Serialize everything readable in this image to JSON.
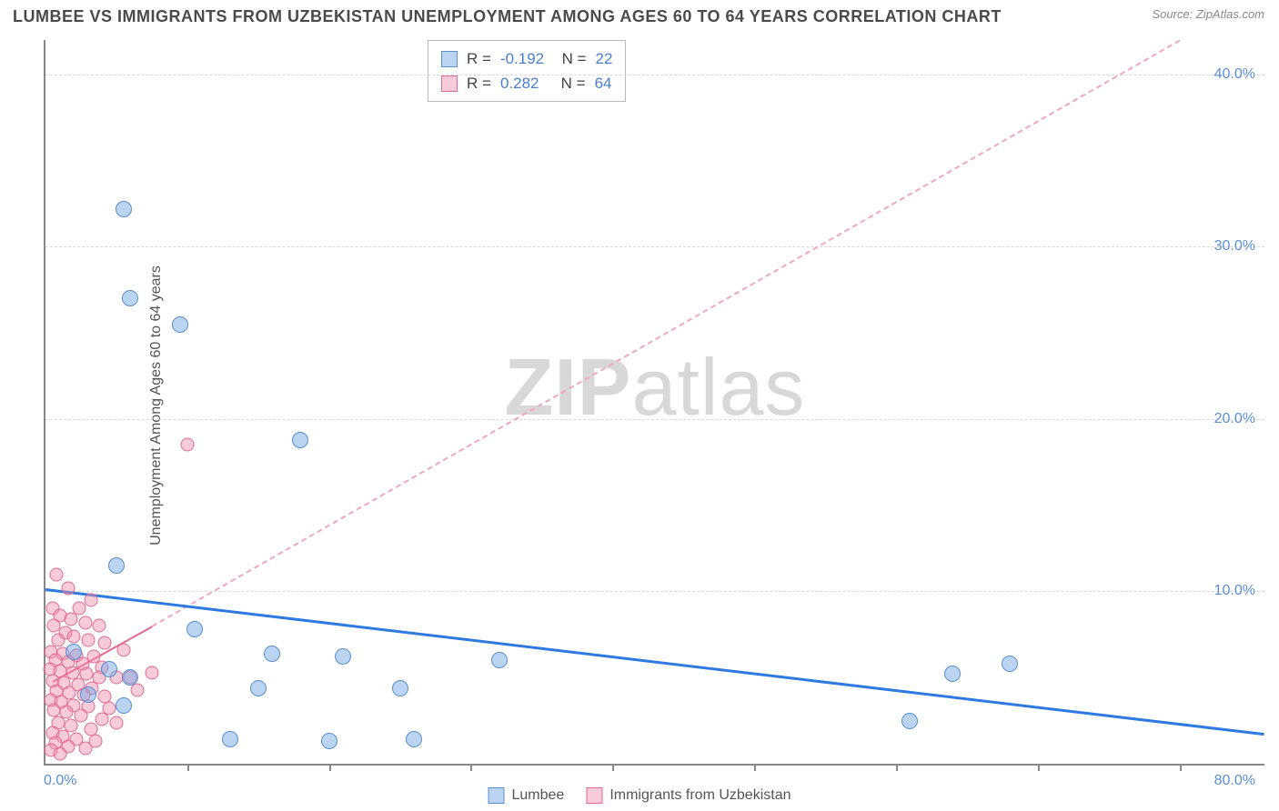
{
  "title": "LUMBEE VS IMMIGRANTS FROM UZBEKISTAN UNEMPLOYMENT AMONG AGES 60 TO 64 YEARS CORRELATION CHART",
  "source": "Source: ZipAtlas.com",
  "watermark_a": "ZIP",
  "watermark_b": "atlas",
  "ylabel": "Unemployment Among Ages 60 to 64 years",
  "chart": {
    "type": "scatter",
    "xlim": [
      0,
      86
    ],
    "ylim": [
      0,
      42
    ],
    "x_ticks": [
      10,
      20,
      30,
      40,
      50,
      60,
      70,
      80
    ],
    "y_gridlines": [
      10,
      20,
      30,
      40
    ],
    "y_tick_labels": [
      {
        "v": 10,
        "t": "10.0%"
      },
      {
        "v": 20,
        "t": "20.0%"
      },
      {
        "v": 30,
        "t": "30.0%"
      },
      {
        "v": 40,
        "t": "40.0%"
      }
    ],
    "x_axis_end_label": "80.0%",
    "origin_label": "0.0%",
    "background_color": "#ffffff",
    "grid_color": "#d8d8d8",
    "axis_color": "#888888",
    "tick_label_color": "#5b8fd6",
    "series": [
      {
        "name": "Lumbee",
        "color_fill": "rgba(120,170,230,0.5)",
        "color_stroke": "#5a8fd0",
        "marker_size": 18,
        "R": "-0.192",
        "N": "22",
        "trend": {
          "x1": 0,
          "y1": 10.2,
          "x2": 86,
          "y2": 1.8,
          "color": "#2f7ae0",
          "width": 3,
          "dash": false
        },
        "points": [
          [
            5.5,
            32.2
          ],
          [
            6.0,
            27.0
          ],
          [
            9.5,
            25.5
          ],
          [
            18.0,
            18.8
          ],
          [
            5.0,
            11.5
          ],
          [
            10.5,
            7.8
          ],
          [
            4.5,
            5.5
          ],
          [
            6.0,
            5.0
          ],
          [
            16.0,
            6.4
          ],
          [
            15.0,
            4.4
          ],
          [
            20.0,
            1.3
          ],
          [
            13.0,
            1.4
          ],
          [
            32.0,
            6.0
          ],
          [
            21.0,
            6.2
          ],
          [
            25.0,
            4.4
          ],
          [
            26.0,
            1.4
          ],
          [
            5.5,
            3.4
          ],
          [
            61.0,
            2.5
          ],
          [
            64.0,
            5.2
          ],
          [
            68.0,
            5.8
          ],
          [
            3.0,
            4.0
          ],
          [
            2.0,
            6.5
          ]
        ]
      },
      {
        "name": "Immigrants from Uzbekistan",
        "color_fill": "rgba(240,140,170,0.45)",
        "color_stroke": "#e06a90",
        "marker_size": 15,
        "R": "0.282",
        "N": "64",
        "trend_solid": {
          "x1": 0.5,
          "y1": 4.8,
          "x2": 7.5,
          "y2": 8.0,
          "color": "#e06a90",
          "width": 2.5
        },
        "trend_dash": {
          "x1": 7.5,
          "y1": 8.0,
          "x2": 80,
          "y2": 42,
          "color": "#f0a8bc",
          "width": 2
        },
        "points": [
          [
            10.0,
            18.5
          ],
          [
            0.8,
            11.0
          ],
          [
            1.6,
            10.2
          ],
          [
            3.2,
            9.5
          ],
          [
            0.5,
            9.0
          ],
          [
            2.4,
            9.0
          ],
          [
            1.0,
            8.6
          ],
          [
            1.8,
            8.4
          ],
          [
            0.6,
            8.0
          ],
          [
            2.8,
            8.2
          ],
          [
            3.8,
            8.0
          ],
          [
            1.4,
            7.6
          ],
          [
            0.9,
            7.2
          ],
          [
            2.0,
            7.4
          ],
          [
            3.0,
            7.2
          ],
          [
            4.2,
            7.0
          ],
          [
            5.5,
            6.6
          ],
          [
            0.4,
            6.5
          ],
          [
            1.2,
            6.4
          ],
          [
            2.2,
            6.3
          ],
          [
            3.4,
            6.2
          ],
          [
            0.7,
            6.0
          ],
          [
            1.6,
            5.9
          ],
          [
            2.6,
            5.8
          ],
          [
            4.0,
            5.6
          ],
          [
            0.3,
            5.5
          ],
          [
            1.0,
            5.4
          ],
          [
            1.9,
            5.3
          ],
          [
            2.9,
            5.2
          ],
          [
            3.8,
            5.0
          ],
          [
            5.0,
            5.0
          ],
          [
            6.0,
            5.0
          ],
          [
            0.5,
            4.8
          ],
          [
            1.3,
            4.7
          ],
          [
            2.3,
            4.6
          ],
          [
            3.3,
            4.4
          ],
          [
            0.8,
            4.2
          ],
          [
            1.7,
            4.1
          ],
          [
            2.7,
            4.0
          ],
          [
            4.2,
            3.9
          ],
          [
            0.4,
            3.7
          ],
          [
            1.1,
            3.6
          ],
          [
            2.0,
            3.4
          ],
          [
            3.0,
            3.3
          ],
          [
            0.6,
            3.1
          ],
          [
            1.5,
            3.0
          ],
          [
            2.5,
            2.8
          ],
          [
            4.0,
            2.6
          ],
          [
            0.9,
            2.4
          ],
          [
            1.8,
            2.2
          ],
          [
            3.2,
            2.0
          ],
          [
            5.0,
            2.4
          ],
          [
            0.5,
            1.8
          ],
          [
            1.2,
            1.6
          ],
          [
            2.2,
            1.4
          ],
          [
            3.5,
            1.3
          ],
          [
            0.7,
            1.2
          ],
          [
            1.6,
            1.0
          ],
          [
            0.4,
            0.8
          ],
          [
            2.8,
            0.9
          ],
          [
            1.0,
            0.6
          ],
          [
            4.5,
            3.2
          ],
          [
            6.5,
            4.3
          ],
          [
            7.5,
            5.3
          ]
        ]
      }
    ]
  },
  "legend": {
    "items": [
      {
        "label": "Lumbee",
        "class": "sq-blue"
      },
      {
        "label": "Immigrants from Uzbekistan",
        "class": "sq-pink"
      }
    ]
  }
}
